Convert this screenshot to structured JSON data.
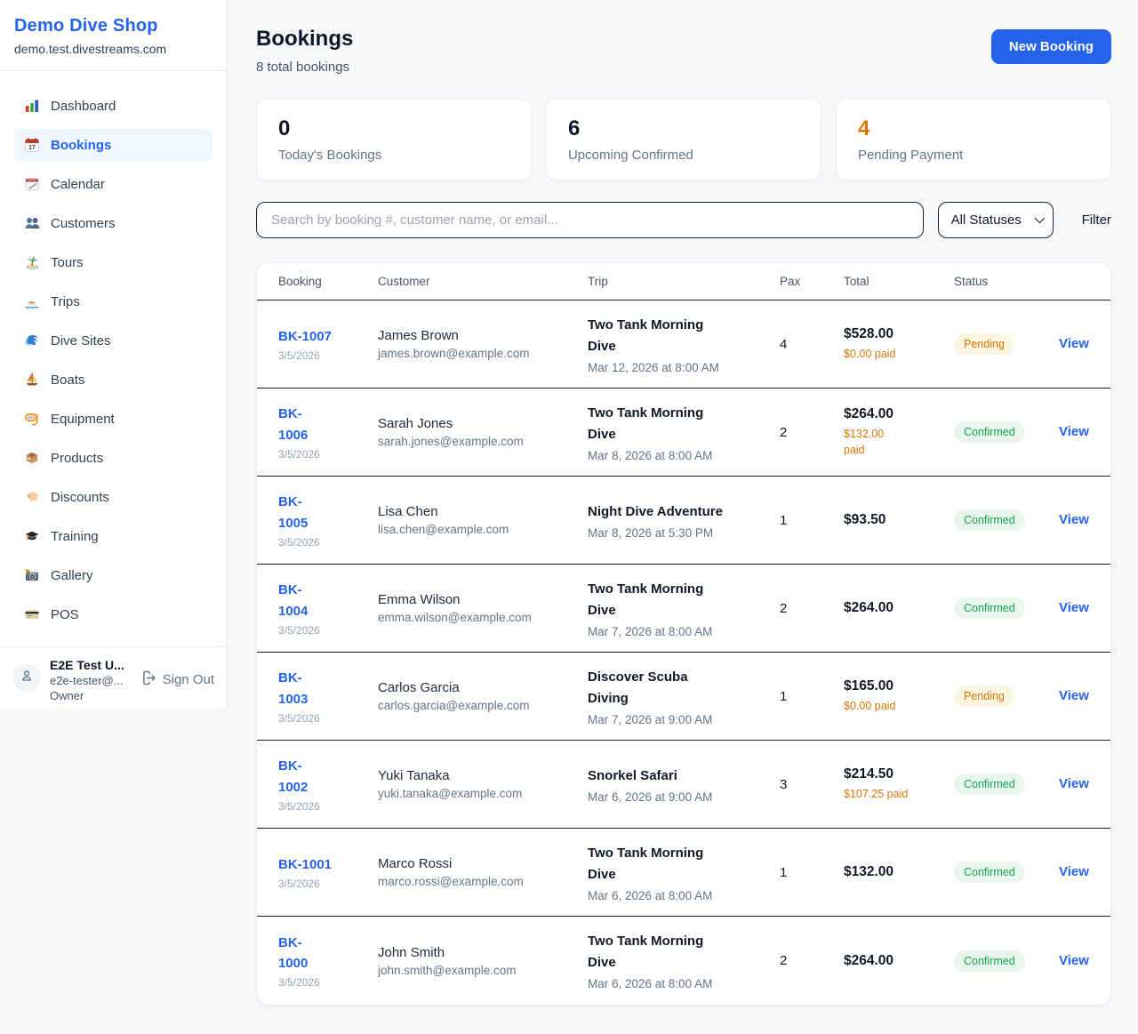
{
  "colors": {
    "accent": "#2563eb",
    "pending_text": "#d97706",
    "pending_bg": "#fcf5e1",
    "confirmed_text": "#16a34a",
    "confirmed_bg": "#e9f7ef",
    "stat_orange": "#d97706"
  },
  "sidebar": {
    "brand": {
      "name": "Demo Dive Shop",
      "domain": "demo.test.divestreams.com"
    },
    "items": [
      {
        "label": "Dashboard",
        "icon": "bar-chart-icon",
        "active": false
      },
      {
        "label": "Bookings",
        "icon": "calendar-date-icon",
        "active": true
      },
      {
        "label": "Calendar",
        "icon": "tear-off-calendar-icon",
        "active": false
      },
      {
        "label": "Customers",
        "icon": "two-people-icon",
        "active": false
      },
      {
        "label": "Tours",
        "icon": "desert-island-icon",
        "active": false
      },
      {
        "label": "Trips",
        "icon": "speedboat-icon",
        "active": false
      },
      {
        "label": "Dive Sites",
        "icon": "water-wave-icon",
        "active": false
      },
      {
        "label": "Boats",
        "icon": "sailboat-icon",
        "active": false
      },
      {
        "label": "Equipment",
        "icon": "diving-mask-icon",
        "active": false
      },
      {
        "label": "Products",
        "icon": "package-icon",
        "active": false
      },
      {
        "label": "Discounts",
        "icon": "tag-icon",
        "active": false
      },
      {
        "label": "Training",
        "icon": "graduation-cap-icon",
        "active": false
      },
      {
        "label": "Gallery",
        "icon": "camera-flash-icon",
        "active": false
      },
      {
        "label": "POS",
        "icon": "credit-card-icon",
        "active": false
      }
    ],
    "user": {
      "name": "E2E Test U...",
      "email": "e2e-tester@...",
      "role": "Owner",
      "sign_out_label": "Sign Out"
    }
  },
  "header": {
    "title": "Bookings",
    "subtitle": "8 total bookings",
    "new_booking_label": "New Booking"
  },
  "stats": [
    {
      "value": "0",
      "label": "Today's Bookings",
      "highlight": false
    },
    {
      "value": "6",
      "label": "Upcoming Confirmed",
      "highlight": false
    },
    {
      "value": "4",
      "label": "Pending Payment",
      "highlight": true
    }
  ],
  "filters": {
    "search_placeholder": "Search by booking #, customer name, or email...",
    "status_selected": "All Statuses",
    "filter_label": "Filter"
  },
  "table": {
    "columns": [
      "Booking",
      "Customer",
      "Trip",
      "Pax",
      "Total",
      "Status"
    ],
    "view_label": "View",
    "rows": [
      {
        "id": "BK-1007",
        "date": "3/5/2026",
        "customer": "James Brown",
        "email": "james.brown@example.com",
        "trip": "Two Tank Morning\nDive",
        "trip_datetime": "Mar 12, 2026 at 8:00 AM",
        "pax": "4",
        "total": "$528.00",
        "paid": "$0.00 paid",
        "status": "Pending"
      },
      {
        "id": "BK-\n1006",
        "date": "3/5/2026",
        "customer": "Sarah Jones",
        "email": "sarah.jones@example.com",
        "trip": "Two Tank Morning\nDive",
        "trip_datetime": "Mar 8, 2026 at 8:00 AM",
        "pax": "2",
        "total": "$264.00",
        "paid": "$132.00\npaid",
        "status": "Confirmed"
      },
      {
        "id": "BK-\n1005",
        "date": "3/5/2026",
        "customer": "Lisa Chen",
        "email": "lisa.chen@example.com",
        "trip": "Night Dive Adventure",
        "trip_datetime": "Mar 8, 2026 at 5:30 PM",
        "pax": "1",
        "total": "$93.50",
        "paid": "",
        "status": "Confirmed"
      },
      {
        "id": "BK-\n1004",
        "date": "3/5/2026",
        "customer": "Emma Wilson",
        "email": "emma.wilson@example.com",
        "trip": "Two Tank Morning\nDive",
        "trip_datetime": "Mar 7, 2026 at 8:00 AM",
        "pax": "2",
        "total": "$264.00",
        "paid": "",
        "status": "Confirmed"
      },
      {
        "id": "BK-\n1003",
        "date": "3/5/2026",
        "customer": "Carlos Garcia",
        "email": "carlos.garcia@example.com",
        "trip": "Discover Scuba\nDiving",
        "trip_datetime": "Mar 7, 2026 at 9:00 AM",
        "pax": "1",
        "total": "$165.00",
        "paid": "$0.00 paid",
        "status": "Pending"
      },
      {
        "id": "BK-\n1002",
        "date": "3/5/2026",
        "customer": "Yuki Tanaka",
        "email": "yuki.tanaka@example.com",
        "trip": "Snorkel Safari",
        "trip_datetime": "Mar 6, 2026 at 9:00 AM",
        "pax": "3",
        "total": "$214.50",
        "paid": "$107.25 paid",
        "status": "Confirmed"
      },
      {
        "id": "BK-1001",
        "date": "3/5/2026",
        "customer": "Marco Rossi",
        "email": "marco.rossi@example.com",
        "trip": "Two Tank Morning\nDive",
        "trip_datetime": "Mar 6, 2026 at 8:00 AM",
        "pax": "1",
        "total": "$132.00",
        "paid": "",
        "status": "Confirmed"
      },
      {
        "id": "BK-\n1000",
        "date": "3/5/2026",
        "customer": "John Smith",
        "email": "john.smith@example.com",
        "trip": "Two Tank Morning\nDive",
        "trip_datetime": "Mar 6, 2026 at 8:00 AM",
        "pax": "2",
        "total": "$264.00",
        "paid": "",
        "status": "Confirmed"
      }
    ]
  }
}
